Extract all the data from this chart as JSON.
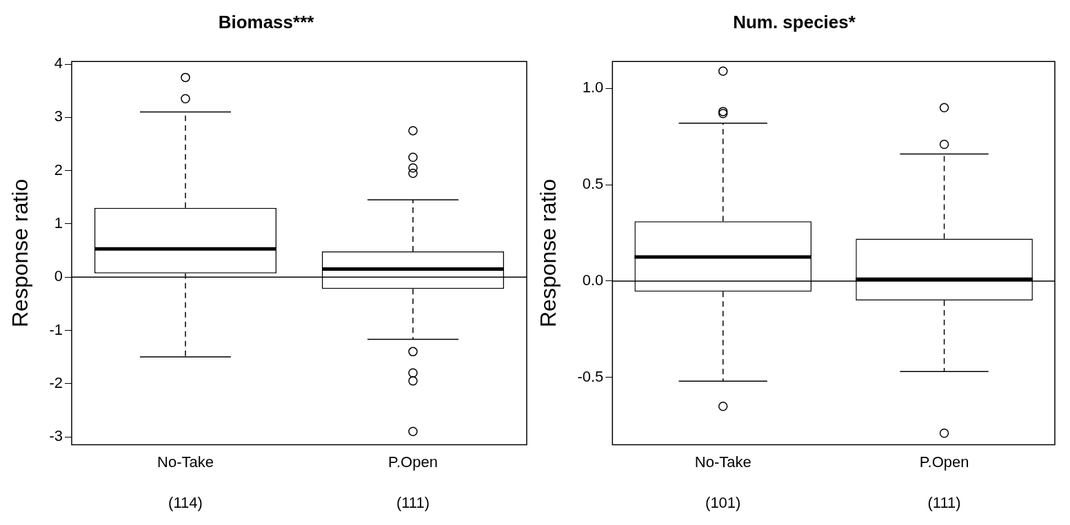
{
  "chart_data": [
    {
      "type": "box",
      "title": "Biomass***",
      "ylabel": "Response ratio",
      "categories": [
        "No-Take",
        "P.Open"
      ],
      "boxes": [
        {
          "low": -1.5,
          "q1": 0.07,
          "median": 0.53,
          "q3": 1.3,
          "high": 3.1,
          "outliers": [
            3.75,
            3.35
          ]
        },
        {
          "low": -1.17,
          "q1": -0.22,
          "median": 0.15,
          "q3": 0.48,
          "high": 1.45,
          "outliers": [
            2.75,
            2.25,
            2.05,
            1.95,
            -1.4,
            -1.8,
            -1.95,
            -2.9
          ]
        }
      ],
      "ylim": [
        -3.15,
        4.05
      ],
      "yticks": [
        -3,
        -2,
        -1,
        0,
        1,
        2,
        3,
        4
      ],
      "grid": false,
      "marker": "circle",
      "ref_lines": [
        {
          "axis": "y",
          "value": 0
        }
      ],
      "annotations": [
        "(114)",
        "(111)"
      ]
    },
    {
      "type": "box",
      "title": "Num. species*",
      "ylabel": "Response ratio",
      "categories": [
        "No-Take",
        "P.Open"
      ],
      "boxes": [
        {
          "low": -0.52,
          "q1": -0.055,
          "median": 0.125,
          "q3": 0.31,
          "high": 0.82,
          "outliers": [
            1.09,
            0.88,
            0.87,
            -0.65
          ]
        },
        {
          "low": -0.47,
          "q1": -0.1,
          "median": 0.01,
          "q3": 0.22,
          "high": 0.66,
          "outliers": [
            0.9,
            0.71,
            -0.79
          ]
        }
      ],
      "ylim": [
        -0.85,
        1.14
      ],
      "yticks": [
        {
          "value": -0.5,
          "label": "-0.5"
        },
        {
          "value": 0,
          "label": "0.0"
        },
        {
          "value": 0.5,
          "label": "0.5"
        },
        {
          "value": 1,
          "label": "1.0"
        }
      ],
      "grid": false,
      "marker": "circle",
      "ref_lines": [
        {
          "axis": "y",
          "value": 0
        }
      ],
      "annotations": [
        "(101)",
        "(111)"
      ]
    }
  ]
}
